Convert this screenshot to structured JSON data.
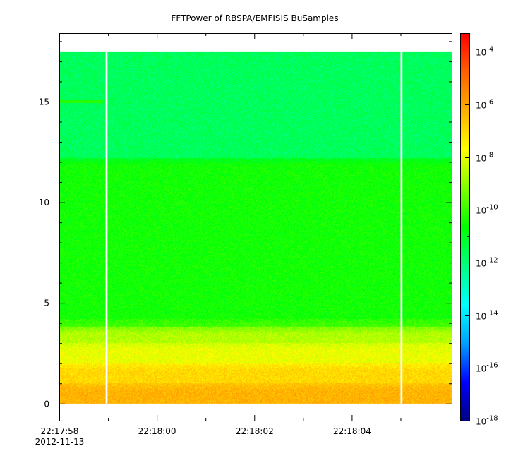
{
  "chart_data": {
    "type": "heatmap",
    "title": "FFTPower of RBSPA/EMFISIS  BuSamples",
    "xlabel": "",
    "ylabel": "",
    "x_ticks": [
      {
        "value": 0.0,
        "label": "22:17:58",
        "sublabel": "2012-11-13"
      },
      {
        "value": 2.0,
        "label": "22:18:00"
      },
      {
        "value": 4.0,
        "label": "22:18:02"
      },
      {
        "value": 6.0,
        "label": "22:18:04"
      }
    ],
    "x_minor_ticks": [
      1.0,
      3.0,
      5.0,
      7.0
    ],
    "xlim": [
      0.0,
      8.05
    ],
    "ylim": [
      -0.85,
      18.4
    ],
    "y_ticks": [
      {
        "value": 0,
        "label": "0"
      },
      {
        "value": 5,
        "label": "5"
      },
      {
        "value": 10,
        "label": "10"
      },
      {
        "value": 15,
        "label": "15"
      }
    ],
    "data_extent": {
      "x": [
        0.0,
        8.05
      ],
      "y": [
        0.0,
        17.5
      ]
    },
    "gaps": [
      [
        0.95,
        0.99
      ],
      [
        7.0,
        7.04
      ]
    ],
    "frequency_bands": [
      {
        "from": 0.0,
        "to": 1.0,
        "log_power": -6.3
      },
      {
        "from": 1.0,
        "to": 2.0,
        "log_power": -7.0
      },
      {
        "from": 2.0,
        "to": 3.0,
        "log_power": -7.9
      },
      {
        "from": 3.0,
        "to": 3.8,
        "log_power": -8.6
      },
      {
        "from": 3.8,
        "to": 4.2,
        "log_power": -9.9
      },
      {
        "from": 4.2,
        "to": 12.2,
        "log_power": -10.5
      },
      {
        "from": 12.2,
        "to": 17.5,
        "log_power": -11.7
      }
    ],
    "line_feature": {
      "y": 15.0,
      "x": [
        0.0,
        0.9
      ],
      "log_power": -10.2
    },
    "colorbar": {
      "scale": "log",
      "range_exp": [
        -18,
        -3.3
      ],
      "tick_exps": [
        -18,
        -16,
        -14,
        -12,
        -10,
        -8,
        -6,
        -4
      ],
      "tick_base": "10",
      "colors": [
        "#000080",
        "#0000ff",
        "#00a0ff",
        "#00ffff",
        "#00ff80",
        "#00ff00",
        "#80ff00",
        "#ffff00",
        "#ffb000",
        "#ff6000",
        "#ff0000"
      ]
    },
    "grid": false,
    "legend": "colorbar-right"
  }
}
